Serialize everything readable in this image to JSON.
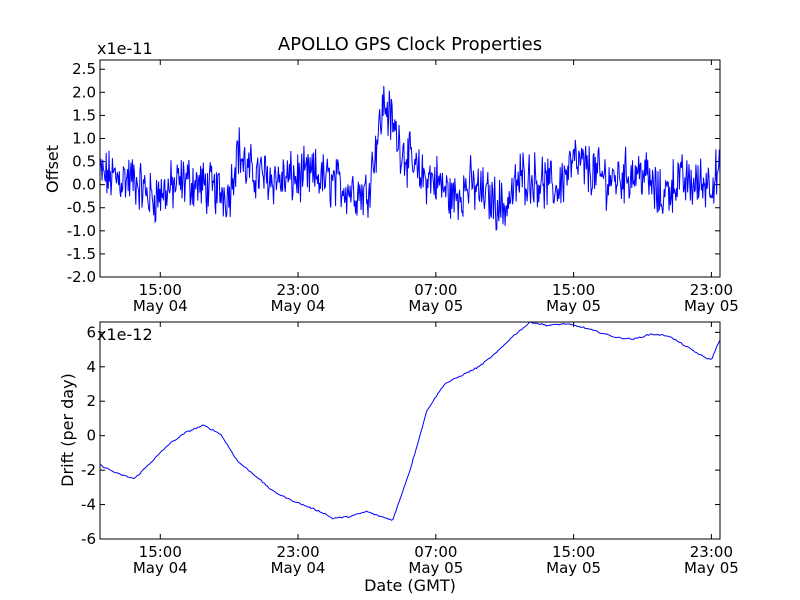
{
  "figure": {
    "title": "APOLLO GPS Clock Properties",
    "xlabel": "Date (GMT)",
    "x_tick_labels": [
      {
        "time": "15:00",
        "date": "May 04"
      },
      {
        "time": "23:00",
        "date": "May 04"
      },
      {
        "time": "07:00",
        "date": "May 05"
      },
      {
        "time": "15:00",
        "date": "May 05"
      },
      {
        "time": "23:00",
        "date": "May 05"
      }
    ]
  },
  "chart_data": [
    {
      "type": "line",
      "ylabel": "Offset",
      "y_multiplier": "x1e-11",
      "xlim": [
        "May 04 11:30",
        "May 05 23:30"
      ],
      "ylim": [
        -2.0,
        2.7
      ],
      "y_ticks": [
        "-2.0",
        "-1.5",
        "-1.0",
        "-0.5",
        "0.0",
        "0.5",
        "1.0",
        "1.5",
        "2.0",
        "2.5"
      ],
      "color": "#0000ff",
      "grid": false,
      "series": [
        {
          "x": [
            "May 04 11:30",
            "May 04 13:30",
            "May 04 14:30",
            "May 04 16:30",
            "May 04 18:00",
            "May 04 19:00",
            "May 04 19:30",
            "May 04 20:00",
            "May 04 22:00",
            "May 05 00:00",
            "May 05 02:00",
            "May 05 03:00",
            "May 05 04:00",
            "May 05 05:00",
            "May 05 06:00",
            "May 05 07:00",
            "May 05 08:00",
            "May 05 09:00",
            "May 05 11:00",
            "May 05 12:00",
            "May 05 13:00",
            "May 05 14:00",
            "May 05 15:00",
            "May 05 17:00",
            "May 05 18:00",
            "May 05 19:00",
            "May 05 20:00",
            "May 05 21:00",
            "May 05 22:00",
            "May 05 23:00",
            "May 05 23:30"
          ],
          "values": [
            0.2,
            0.1,
            -0.3,
            0.1,
            -0.1,
            -0.2,
            0.8,
            0.3,
            0.1,
            0.2,
            -0.1,
            -0.2,
            1.8,
            0.8,
            0.2,
            0.1,
            -0.3,
            0.0,
            -0.5,
            0.2,
            0.1,
            -0.1,
            0.5,
            0.1,
            0.2,
            0.3,
            -0.3,
            0.1,
            0.0,
            0.1,
            0.2
          ]
        }
      ]
    },
    {
      "type": "line",
      "ylabel": "Drift (per day)",
      "y_multiplier": "x1e-12",
      "xlim": [
        "May 04 11:30",
        "May 05 23:30"
      ],
      "ylim": [
        -6,
        6.6
      ],
      "y_ticks": [
        "-6",
        "-4",
        "-2",
        "0",
        "2",
        "4",
        "6"
      ],
      "color": "#0000ff",
      "grid": false,
      "series": [
        {
          "x": [
            "May 04 11:30",
            "May 04 12:30",
            "May 04 13:30",
            "May 04 14:30",
            "May 04 15:30",
            "May 04 16:30",
            "May 04 17:30",
            "May 04 18:30",
            "May 04 19:30",
            "May 04 20:30",
            "May 04 21:30",
            "May 04 22:30",
            "May 04 23:30",
            "May 05 00:30",
            "May 05 01:00",
            "May 05 02:00",
            "May 05 03:00",
            "May 05 03:30",
            "May 05 04:30",
            "May 05 05:30",
            "May 05 06:30",
            "May 05 07:30",
            "May 05 08:30",
            "May 05 09:30",
            "May 05 10:30",
            "May 05 11:30",
            "May 05 12:30",
            "May 05 13:30",
            "May 05 14:30",
            "May 05 15:30",
            "May 05 16:30",
            "May 05 17:30",
            "May 05 18:30",
            "May 05 19:30",
            "May 05 20:30",
            "May 05 21:30",
            "May 05 22:30",
            "May 05 23:00",
            "May 05 23:30"
          ],
          "values": [
            -1.7,
            -2.2,
            -2.5,
            -1.5,
            -0.5,
            0.2,
            0.6,
            0.1,
            -1.5,
            -2.3,
            -3.2,
            -3.7,
            -4.1,
            -4.5,
            -4.8,
            -4.7,
            -4.4,
            -4.6,
            -4.9,
            -2.0,
            1.5,
            3.0,
            3.5,
            4.0,
            4.8,
            5.8,
            6.6,
            6.4,
            6.5,
            6.3,
            6.0,
            5.7,
            5.6,
            5.9,
            5.8,
            5.2,
            4.6,
            4.4,
            5.6
          ]
        }
      ]
    }
  ]
}
